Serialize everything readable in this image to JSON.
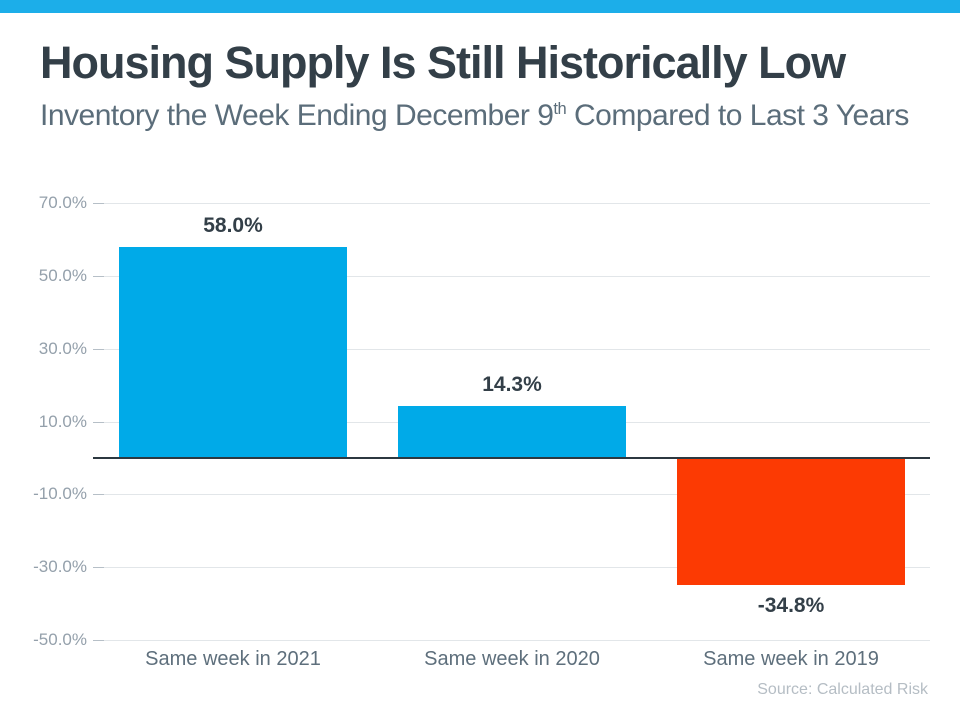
{
  "page": {
    "accent_strip_color": "#1CAEE9",
    "background_color": "#ffffff"
  },
  "header": {
    "title": "Housing Supply Is Still Historically Low",
    "subtitle_pre": "Inventory the Week Ending December 9",
    "subtitle_sup": "th",
    "subtitle_post": " Compared to Last 3 Years"
  },
  "source": {
    "label": "Source: Calculated Risk"
  },
  "chart_data": {
    "type": "bar",
    "title": "",
    "categories": [
      "Same week in 2021",
      "Same week in 2020",
      "Same week in 2019"
    ],
    "values": [
      58.0,
      14.3,
      -34.8
    ],
    "data_labels": [
      "58.0%",
      "14.3%",
      "-34.8%"
    ],
    "bar_colors": [
      "#00AAE8",
      "#00AAE8",
      "#FC3A03"
    ],
    "y_ticks": [
      70,
      50,
      30,
      10,
      -10,
      -30,
      -50
    ],
    "y_tick_labels": [
      "70.0%",
      "50.0%",
      "30.0%",
      "10.0%",
      "-10.0%",
      "-30.0%",
      "-50.0%"
    ],
    "ylim": [
      -50,
      70
    ],
    "xlabel": "",
    "ylabel": "",
    "grid": true,
    "legend": false,
    "zero_line": true,
    "gridline_color": "#e2e6e9",
    "zero_line_color": "#2C3840"
  }
}
